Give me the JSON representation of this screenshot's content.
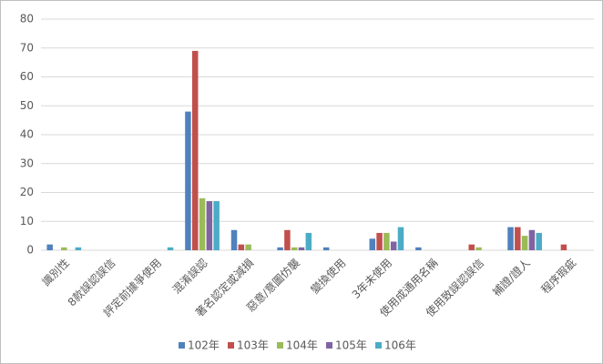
{
  "chart_data": {
    "type": "bar",
    "categories": [
      "識別性",
      "8款誤認誤信",
      "評定前據爭使用",
      "混淆誤認",
      "著名認定或減損",
      "惡意/意圖仿襲",
      "變換使用",
      "3年未使用",
      "使用成通用名稱",
      "使用致誤認誤信",
      "補證/證人",
      "程序瑕疵"
    ],
    "series": [
      {
        "name": "102年",
        "color": "#4f81bd",
        "values": [
          2,
          0,
          0,
          48,
          7,
          1,
          1,
          4,
          1,
          0,
          8,
          0
        ]
      },
      {
        "name": "103年",
        "color": "#c0504d",
        "values": [
          0,
          0,
          0,
          69,
          2,
          7,
          0,
          6,
          0,
          2,
          8,
          2
        ]
      },
      {
        "name": "104年",
        "color": "#9bbb59",
        "values": [
          1,
          0,
          0,
          18,
          2,
          1,
          0,
          6,
          0,
          1,
          5,
          0
        ]
      },
      {
        "name": "105年",
        "color": "#8064a2",
        "values": [
          0,
          0,
          0,
          17,
          0,
          1,
          0,
          3,
          0,
          0,
          7,
          0
        ]
      },
      {
        "name": "106年",
        "color": "#4bacc6",
        "values": [
          1,
          0,
          1,
          17,
          0,
          6,
          0,
          8,
          0,
          0,
          6,
          0
        ]
      }
    ],
    "ylim": [
      0,
      80
    ],
    "yticks": [
      0,
      10,
      20,
      30,
      40,
      50,
      60,
      70,
      80
    ],
    "grid": true,
    "legend": "bottom"
  }
}
